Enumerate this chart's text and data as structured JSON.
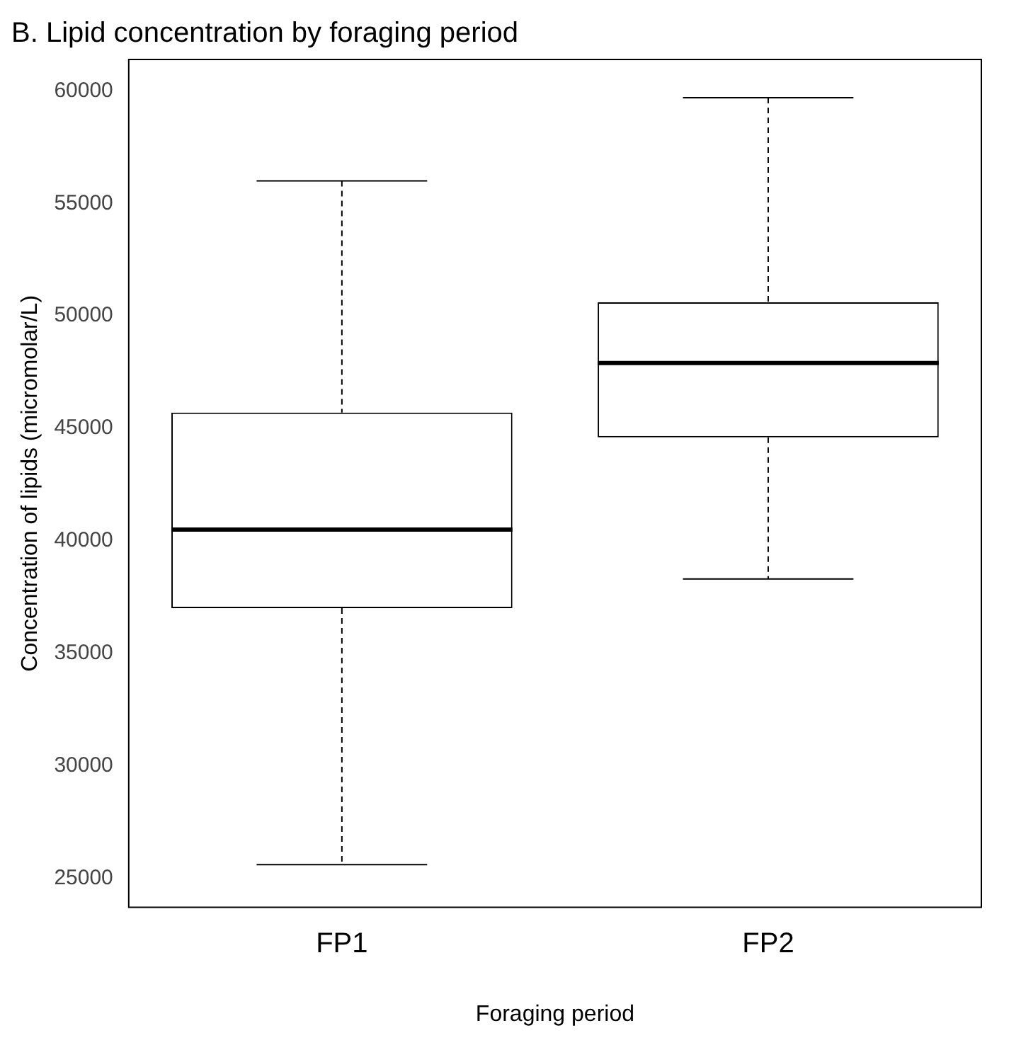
{
  "chart_data": {
    "type": "box",
    "title": "B. Lipid concentration by foraging period",
    "xlabel": "Foraging period",
    "ylabel": "Concentration of lipids (micromolar/L)",
    "categories": [
      "FP1",
      "FP2"
    ],
    "boxes": [
      {
        "low": 25600,
        "q1": 37000,
        "median": 40500,
        "q3": 45700,
        "high": 56000
      },
      {
        "low": 38300,
        "q1": 44600,
        "median": 47900,
        "q3": 50600,
        "high": 59700
      }
    ],
    "ylim": [
      23700,
      61400
    ],
    "yticks": [
      25000,
      30000,
      35000,
      40000,
      45000,
      50000,
      55000,
      60000
    ],
    "grid": false,
    "legend": false
  }
}
